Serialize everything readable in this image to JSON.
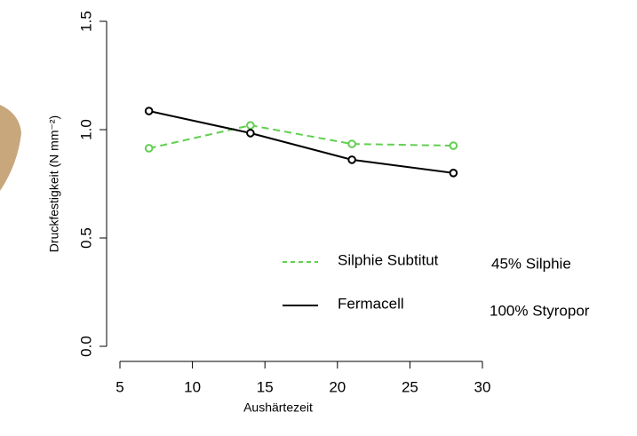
{
  "chart_data": {
    "type": "line",
    "x": [
      7,
      14,
      21,
      28
    ],
    "x_label": "Aushärtezeit",
    "y_label": "Druckfestigkeit (N mm⁻²)",
    "series": [
      {
        "name": "Silphie Subtitut",
        "color": "#61d04f",
        "dash": true,
        "values": [
          0.914,
          1.02,
          0.934,
          0.926
        ]
      },
      {
        "name": "Fermacell",
        "color": "#000000",
        "dash": false,
        "values": [
          1.086,
          0.984,
          0.861,
          0.8
        ]
      }
    ],
    "annotations": [
      "45% Silphie",
      "100% Styropor"
    ],
    "xlim": [
      5,
      30
    ],
    "xticks": [
      5,
      10,
      15,
      20,
      25,
      30
    ],
    "ylim": [
      0,
      1.5
    ],
    "yticks": [
      {
        "value": 0,
        "label": "0.0"
      },
      0.5,
      {
        "value": 1,
        "label": "1.0"
      },
      1.5
    ]
  }
}
